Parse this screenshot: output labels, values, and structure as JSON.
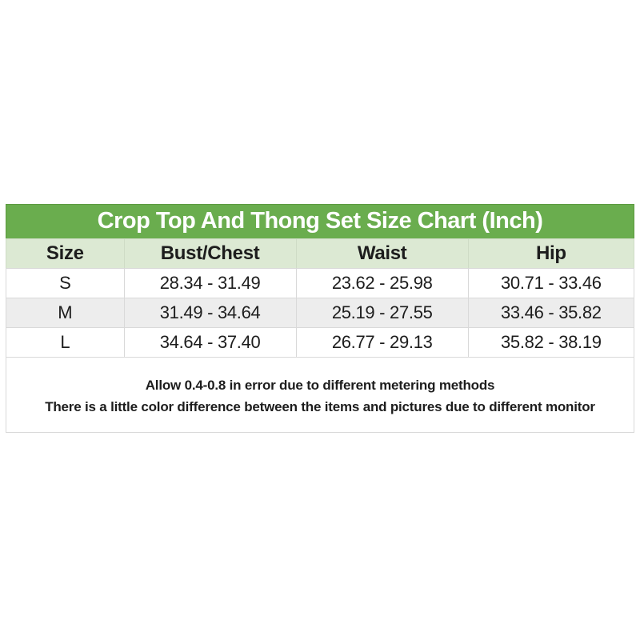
{
  "colors": {
    "title_bg": "#6aad4e",
    "title_border": "#5b9a3f",
    "title_text": "#ffffff",
    "header_bg": "#dce9d3",
    "row_alt_bg": "#ededed",
    "row_bg": "#ffffff",
    "border": "#d9d9d9",
    "text": "#1d1d1d"
  },
  "title": "Crop Top And Thong Set Size Chart (Inch)",
  "table": {
    "headers": [
      "Size",
      "Bust/Chest",
      "Waist",
      "Hip"
    ],
    "rows": [
      [
        "S",
        "28.34 - 31.49",
        "23.62 - 25.98",
        "30.71 - 33.46"
      ],
      [
        "M",
        "31.49 - 34.64",
        "25.19 - 27.55",
        "33.46 - 35.82"
      ],
      [
        "L",
        "34.64 - 37.40",
        "26.77 - 29.13",
        "35.82 - 38.19"
      ]
    ]
  },
  "notes": [
    "Allow 0.4-0.8 in error due to different metering methods",
    "There is a little color difference between the items and pictures due to different monitor"
  ],
  "chart_data": {
    "type": "table",
    "title": "Crop Top And Thong Set Size Chart (Inch)",
    "units": "inch",
    "columns": [
      "Size",
      "Bust/Chest",
      "Waist",
      "Hip"
    ],
    "rows": [
      {
        "size": "S",
        "bust_chest": "28.34 - 31.49",
        "waist": "23.62 - 25.98",
        "hip": "30.71 - 33.46"
      },
      {
        "size": "M",
        "bust_chest": "31.49 - 34.64",
        "waist": "25.19 - 27.55",
        "hip": "33.46 - 35.82"
      },
      {
        "size": "L",
        "bust_chest": "34.64 - 37.40",
        "waist": "26.77 - 29.13",
        "hip": "35.82 - 38.19"
      }
    ],
    "footnotes": [
      "Allow 0.4-0.8 in error due to different metering methods",
      "There is a little color difference between the items and pictures due to different monitor"
    ]
  }
}
